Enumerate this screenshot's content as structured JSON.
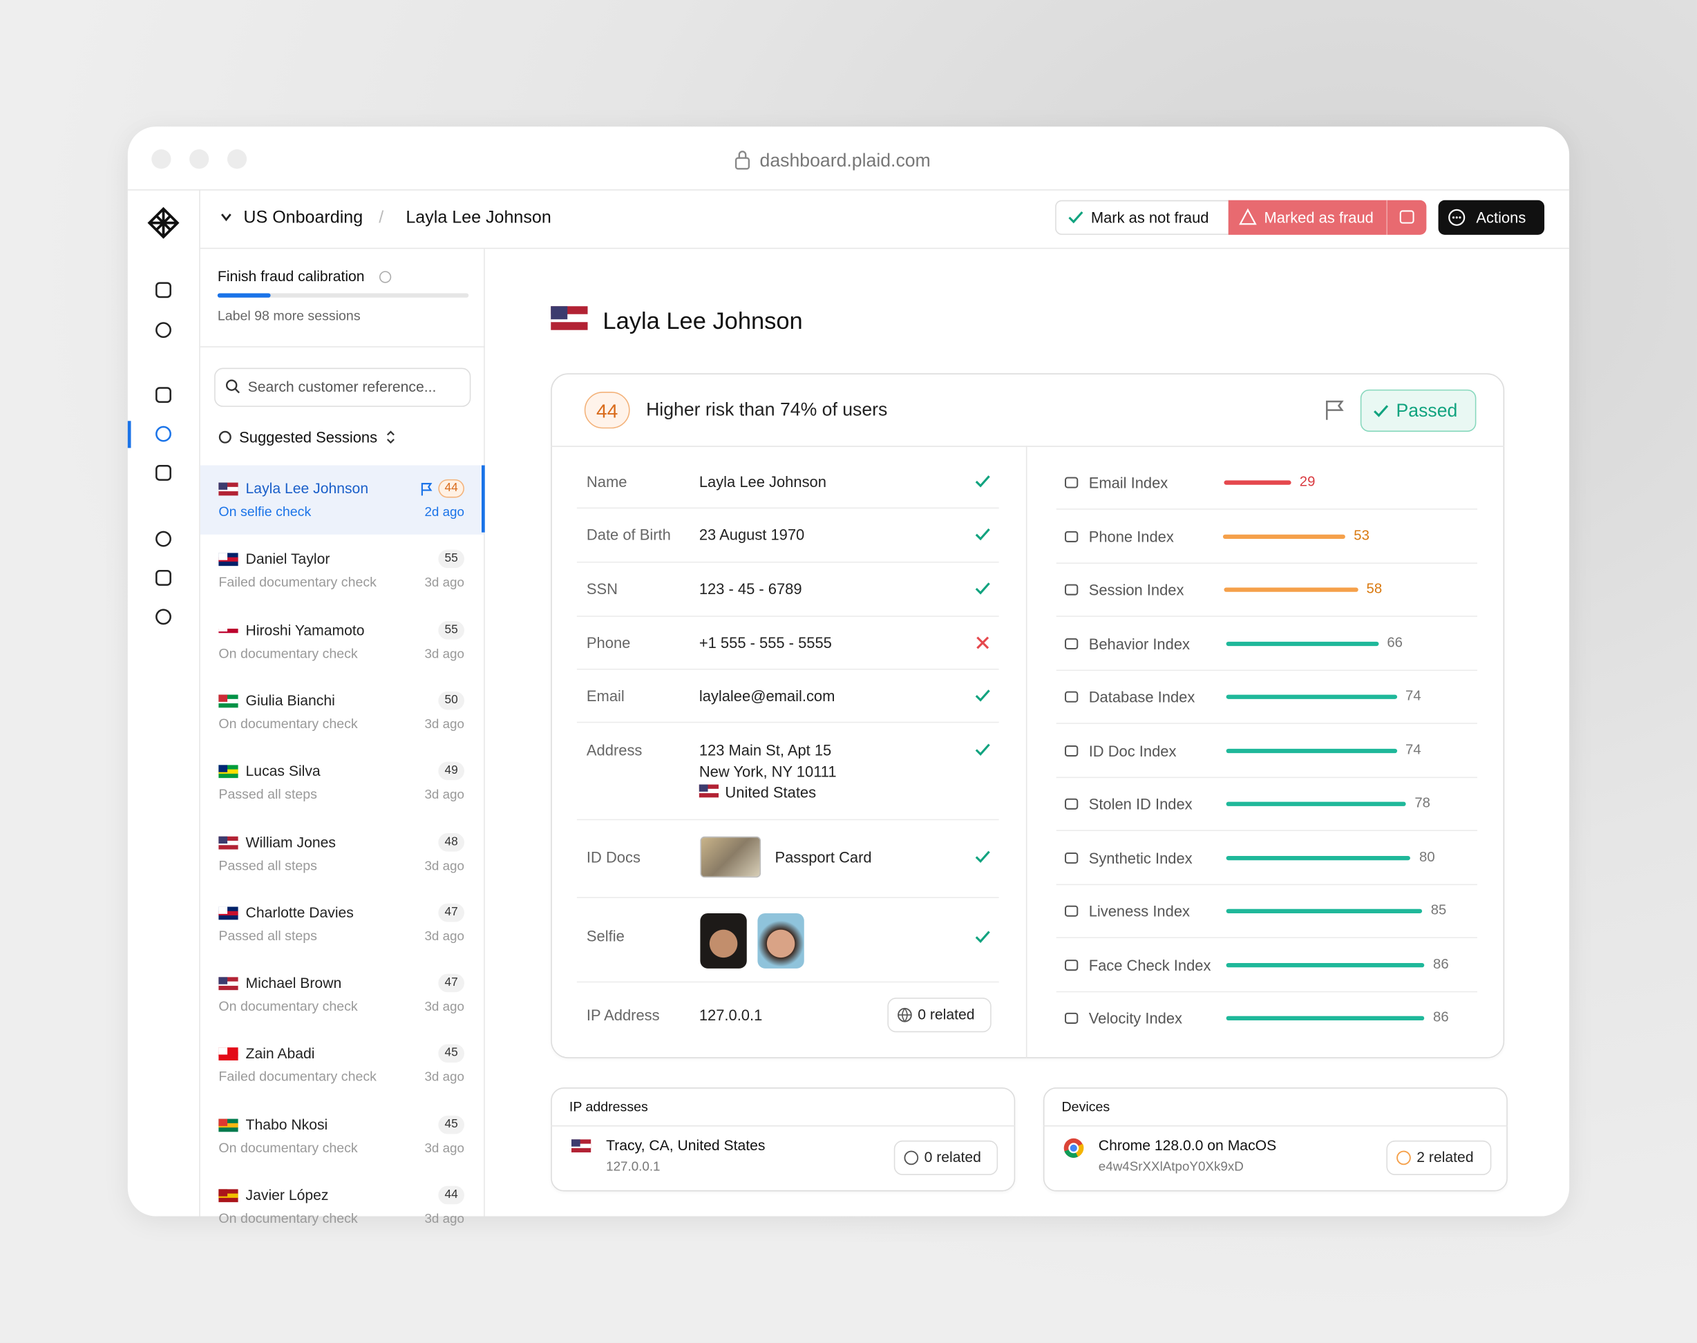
{
  "browser": {
    "url": "dashboard.plaid.com"
  },
  "header": {
    "breadcrumb": [
      "US Onboarding",
      "Layla Lee Johnson"
    ],
    "separator": "/",
    "mark_not_fraud": "Mark as not fraud",
    "marked_fraud": "Marked as fraud",
    "actions": "Actions"
  },
  "sidebar": {
    "calibration_title": "Finish fraud calibration",
    "calibration_subtitle": "Label 98 more sessions",
    "search_placeholder": "Search customer reference...",
    "suggested": "Suggested Sessions",
    "sessions": [
      {
        "name": "Layla Lee Johnson",
        "status": "On selfie check",
        "score": 44,
        "time": "2d ago"
      },
      {
        "name": "Daniel Taylor",
        "status": "Failed documentary check",
        "score": 55,
        "time": "3d ago"
      },
      {
        "name": "Hiroshi Yamamoto",
        "status": "On documentary check",
        "score": 55,
        "time": "3d ago"
      },
      {
        "name": "Giulia Bianchi",
        "status": "On documentary check",
        "score": 50,
        "time": "3d ago"
      },
      {
        "name": "Lucas Silva",
        "status": "Passed all steps",
        "score": 49,
        "time": "3d ago"
      },
      {
        "name": "William Jones",
        "status": "Passed all steps",
        "score": 48,
        "time": "3d ago"
      },
      {
        "name": "Charlotte Davies",
        "status": "Passed all steps",
        "score": 47,
        "time": "3d ago"
      },
      {
        "name": "Michael Brown",
        "status": "On documentary check",
        "score": 47,
        "time": "3d ago"
      },
      {
        "name": "Zain Abadi",
        "status": "Failed documentary check",
        "score": 45,
        "time": "3d ago"
      },
      {
        "name": "Thabo Nkosi",
        "status": "On documentary check",
        "score": 45,
        "time": "3d ago"
      },
      {
        "name": "Javier López",
        "status": "On documentary check",
        "score": 44,
        "time": "3d ago"
      }
    ]
  },
  "profile": {
    "name": "Layla Lee Johnson",
    "risk_score": 44,
    "risk_text": "Higher risk than 74% of users",
    "status": "Passed"
  },
  "fields": [
    {
      "label": "Name",
      "value": [
        "Layla Lee Johnson"
      ],
      "check": "pass"
    },
    {
      "label": "Date of Birth",
      "value": [
        "23 August 1970"
      ],
      "check": "pass"
    },
    {
      "label": "SSN",
      "value": [
        "123 - 45 - 6789"
      ],
      "check": "pass"
    },
    {
      "label": "Phone",
      "value": [
        "+1 555 - 555 - 5555"
      ],
      "check": "fail"
    },
    {
      "label": "Email",
      "value": [
        "laylalee@email.com"
      ],
      "check": "pass"
    },
    {
      "label": "Address",
      "value": [
        "123 Main St, Apt 15",
        "New York, NY 10111",
        "United States"
      ],
      "check": "pass"
    },
    {
      "label": "ID Docs",
      "value": [
        "Passport Card"
      ],
      "check": "pass"
    },
    {
      "label": "Selfie",
      "value": [],
      "check": "pass"
    },
    {
      "label": "IP Address",
      "value": [
        "127.0.0.1"
      ],
      "related": "0 related"
    }
  ],
  "indices": [
    {
      "name": "Email Index",
      "value": 29,
      "color": "#e5484d"
    },
    {
      "name": "Phone Index",
      "value": 53,
      "color": "#f5a04a"
    },
    {
      "name": "Session Index",
      "value": 58,
      "color": "#f5a04a"
    },
    {
      "name": "Behavior Index",
      "value": 66,
      "color": "#1fb89a"
    },
    {
      "name": "Database Index",
      "value": 74,
      "color": "#1fb89a"
    },
    {
      "name": "ID Doc Index",
      "value": 74,
      "color": "#1fb89a"
    },
    {
      "name": "Stolen ID Index",
      "value": 78,
      "color": "#1fb89a"
    },
    {
      "name": "Synthetic Index",
      "value": 80,
      "color": "#1fb89a"
    },
    {
      "name": "Liveness Index",
      "value": 85,
      "color": "#1fb89a"
    },
    {
      "name": "Face Check Index",
      "value": 86,
      "color": "#1fb89a"
    },
    {
      "name": "Velocity Index",
      "value": 86,
      "color": "#1fb89a"
    }
  ],
  "ip_card": {
    "title": "IP addresses",
    "location": "Tracy, CA, United States",
    "ip": "127.0.0.1",
    "related": "0 related"
  },
  "devices_card": {
    "title": "Devices",
    "device": "Chrome 128.0.0 on MacOS",
    "id": "e4w4SrXXlAtpoY0Xk9xD",
    "related": "2 related"
  }
}
